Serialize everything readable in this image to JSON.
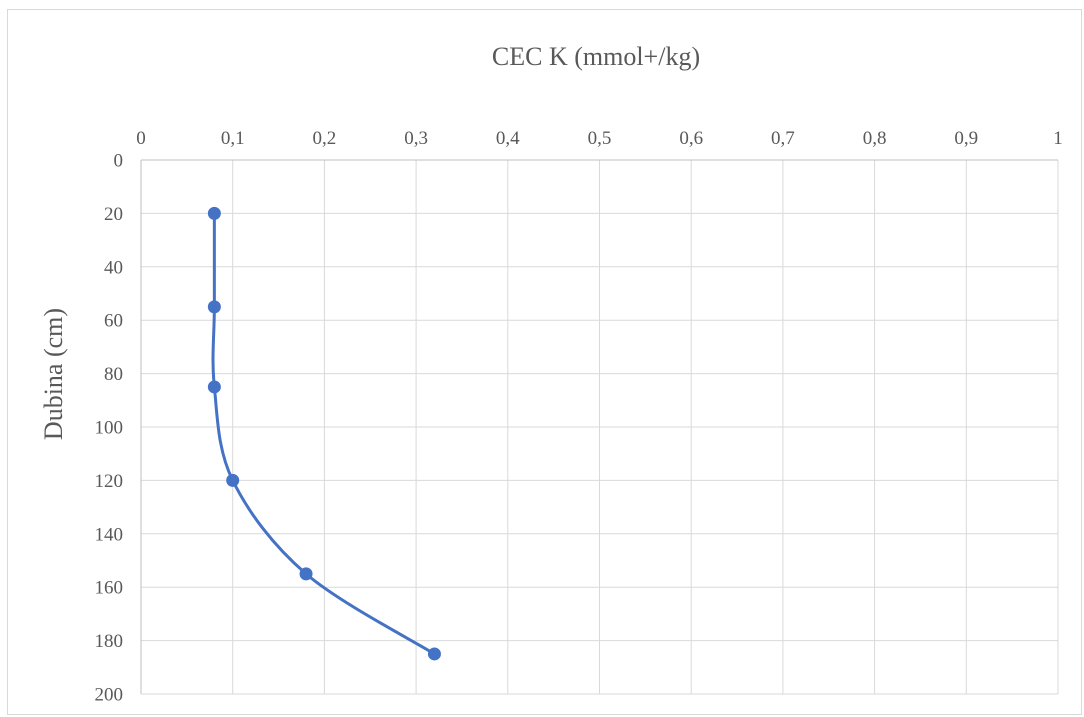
{
  "chart_data": {
    "type": "line",
    "title": "CEC K (mmol+/kg)",
    "xlabel": "",
    "ylabel": "Dubina  (cm)",
    "x_axis_position": "top",
    "y_axis_reversed": true,
    "xlim": [
      0,
      1
    ],
    "ylim": [
      0,
      200
    ],
    "x_ticks": [
      "0",
      "0,1",
      "0,2",
      "0,3",
      "0,4",
      "0,5",
      "0,6",
      "0,7",
      "0,8",
      "0,9",
      "1"
    ],
    "y_ticks": [
      "0",
      "20",
      "40",
      "60",
      "80",
      "100",
      "120",
      "140",
      "160",
      "180",
      "200"
    ],
    "grid": true,
    "legend": "none",
    "smooth": true,
    "series": [
      {
        "color": "#4472c4",
        "points": [
          {
            "x": 0.08,
            "y": 20
          },
          {
            "x": 0.08,
            "y": 55
          },
          {
            "x": 0.08,
            "y": 85
          },
          {
            "x": 0.1,
            "y": 120
          },
          {
            "x": 0.18,
            "y": 155
          },
          {
            "x": 0.32,
            "y": 185
          }
        ]
      }
    ]
  }
}
